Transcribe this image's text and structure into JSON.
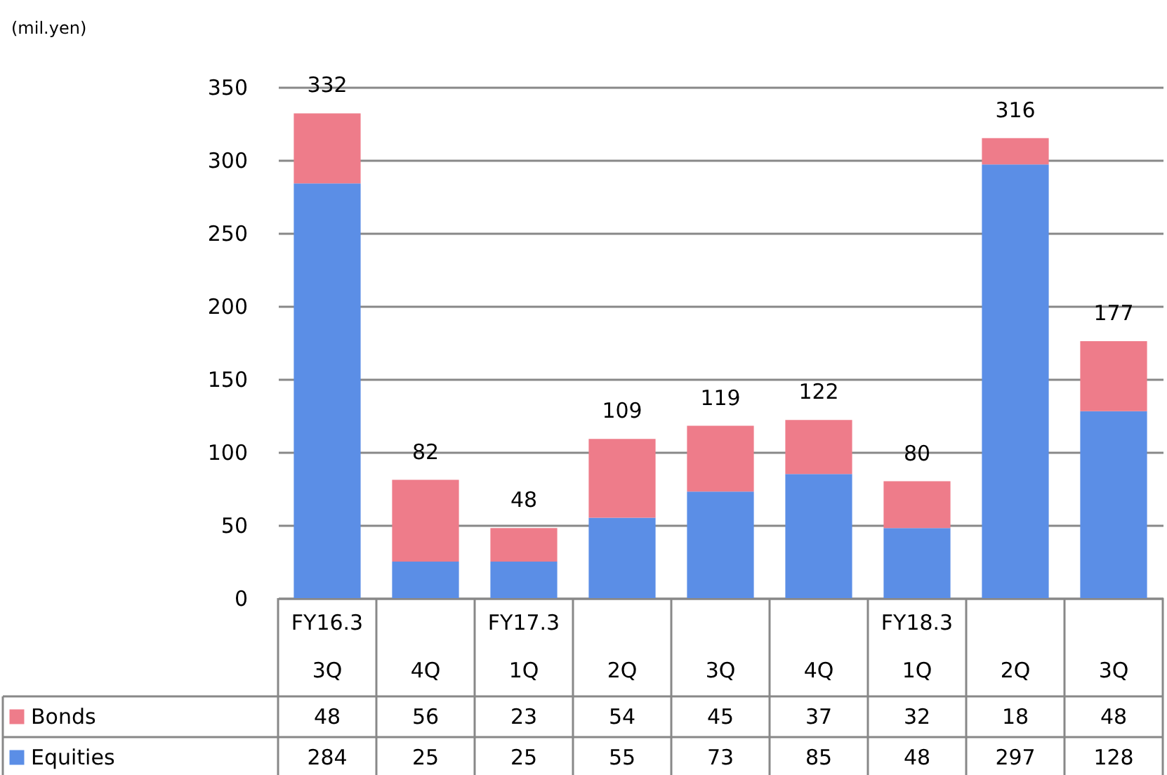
{
  "chart_data": {
    "type": "bar",
    "stacked": true,
    "annotations": [
      "(mil.yen)"
    ],
    "legend": "bottom left",
    "categories": [
      "FY16.3\n3Q",
      "4Q",
      "FY17.3\n1Q",
      "2Q",
      "3Q",
      "4Q",
      "FY18.3\n1Q",
      "2Q",
      "3Q"
    ],
    "series": [
      {
        "name": "Equities",
        "color": "#5b8ee6",
        "values": [
          284,
          25,
          25,
          55,
          73,
          85,
          48,
          297,
          128
        ]
      },
      {
        "name": "Bonds",
        "color": "#ee7c8a",
        "values": [
          48,
          56,
          23,
          54,
          45,
          37,
          32,
          18,
          48
        ]
      }
    ],
    "totals": [
      "332",
      "82",
      "48",
      "109",
      "119",
      "122",
      "80",
      "316",
      "177"
    ],
    "data_labels": true,
    "ylim": [
      0,
      350
    ],
    "yticks": [
      0,
      50,
      100,
      150,
      200,
      250,
      300,
      350
    ],
    "grid": "y"
  }
}
